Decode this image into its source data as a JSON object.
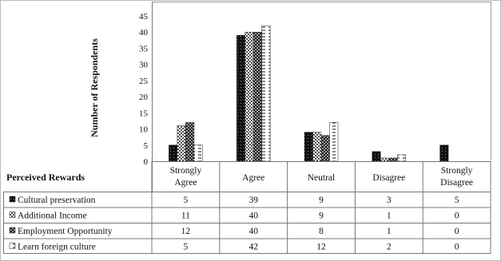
{
  "chart_data": {
    "type": "bar",
    "title": "",
    "xlabel": "Perceived Rewards",
    "ylabel": "Number of Respondents",
    "ylim": [
      0,
      45
    ],
    "yticks": [
      0,
      5,
      10,
      15,
      20,
      25,
      30,
      35,
      40,
      45
    ],
    "grid": false,
    "legend": "table-below",
    "categories": [
      "Strongly Agree",
      "Agree",
      "Neutral",
      "Disagree",
      "Strongly Disagree"
    ],
    "series": [
      {
        "name": "Cultural preservation",
        "values": [
          5,
          39,
          9,
          3,
          5
        ],
        "pattern": "solid-dots",
        "marker": "■"
      },
      {
        "name": "Additional Income",
        "values": [
          11,
          40,
          9,
          1,
          0
        ],
        "pattern": "light-checker",
        "marker": "▩"
      },
      {
        "name": "Employment Opportunity",
        "values": [
          12,
          40,
          8,
          1,
          0
        ],
        "pattern": "dark-cross",
        "marker": "✖"
      },
      {
        "name": "Learn foreign culture",
        "values": [
          5,
          42,
          12,
          2,
          0
        ],
        "pattern": "dashes",
        "marker": "⁂"
      }
    ]
  },
  "colors": {
    "ink": "#111111",
    "axis": "#777777",
    "background": "#ffffff"
  }
}
